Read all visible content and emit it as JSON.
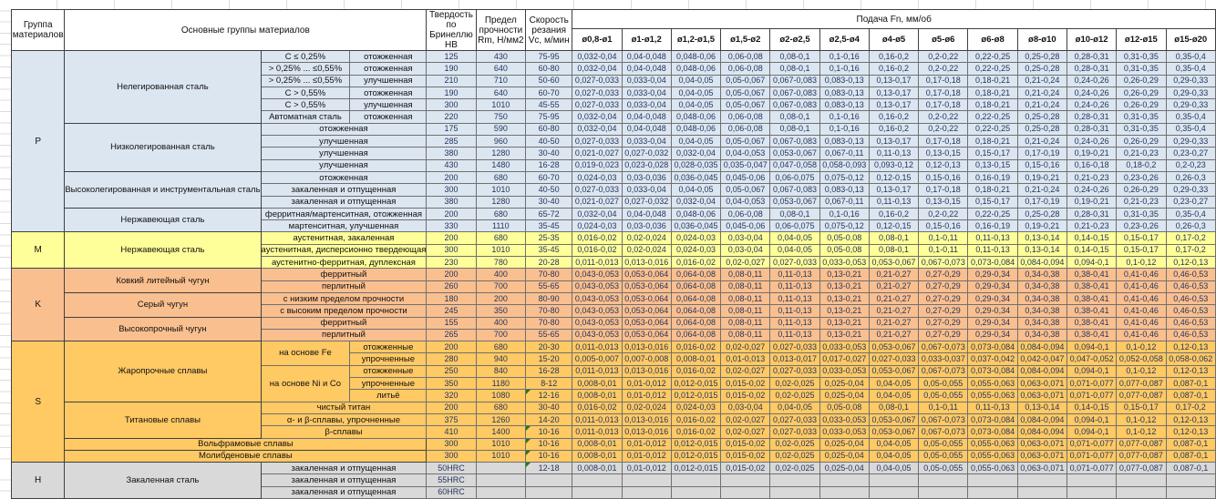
{
  "header": {
    "col_group": "Группа материалов",
    "col_main": "Основные группы материалов",
    "col_hb": "Твердость по Бринеллю HB",
    "col_rm": "Предел прочности Rm, Н/мм2",
    "col_vc": "Скорость резания Vc, м/мин",
    "feed_title": "Подача Fn, мм/об",
    "feed_cols": [
      "ø0,8-ø1",
      "ø1-ø1,2",
      "ø1,2-ø1,5",
      "ø1,5-ø2",
      "ø2-ø2,5",
      "ø2,5-ø4",
      "ø4-ø5",
      "ø5-ø6",
      "ø6-ø8",
      "ø8-ø10",
      "ø10-ø12",
      "ø12-ø15",
      "ø15-ø20"
    ]
  },
  "marker_color": "#1f7a1f",
  "feed_sets": {
    "F1": [
      "0,032-0,04",
      "0,04-0,048",
      "0,048-0,06",
      "0,06-0,08",
      "0,08-0,1",
      "0,1-0,16",
      "0,16-0,2",
      "0,2-0,22",
      "0,22-0,25",
      "0,25-0,28",
      "0,28-0,31",
      "0,31-0,35",
      "0,35-0,4"
    ],
    "F2": [
      "0,027-0,033",
      "0,033-0,04",
      "0,04-0,05",
      "0,05-0,067",
      "0,067-0,083",
      "0,083-0,13",
      "0,13-0,17",
      "0,17-0,18",
      "0,18-0,21",
      "0,21-0,24",
      "0,24-0,26",
      "0,26-0,29",
      "0,29-0,33"
    ],
    "F3": [
      "0,021-0,027",
      "0,027-0,032",
      "0,032-0,04",
      "0,04-0,053",
      "0,053-0,067",
      "0,067-0,11",
      "0,11-0,13",
      "0,13-0,15",
      "0,15-0,17",
      "0,17-0,19",
      "0,19-0,21",
      "0,21-0,23",
      "0,23-0,27"
    ],
    "F4": [
      "0,019-0,023",
      "0,023-0,028",
      "0,028-0,035",
      "0,035-0,047",
      "0,047-0,058",
      "0,058-0,093",
      "0,093-0,12",
      "0,12-0,13",
      "0,13-0,15",
      "0,15-0,16",
      "0,16-0,18",
      "0,18-0,2",
      "0,2-0,23"
    ],
    "F5": [
      "0,024-0,03",
      "0,03-0,036",
      "0,036-0,045",
      "0,045-0,06",
      "0,06-0,075",
      "0,075-0,12",
      "0,12-0,15",
      "0,15-0,16",
      "0,16-0,19",
      "0,19-0,21",
      "0,21-0,23",
      "0,23-0,26",
      "0,26-0,3"
    ],
    "F6": [
      "0,016-0,02",
      "0,02-0,024",
      "0,024-0,03",
      "0,03-0,04",
      "0,04-0,05",
      "0,05-0,08",
      "0,08-0,1",
      "0,1-0,11",
      "0,11-0,13",
      "0,13-0,14",
      "0,14-0,15",
      "0,15-0,17",
      "0,17-0,2"
    ],
    "F7": [
      "0,011-0,013",
      "0,013-0,016",
      "0,016-0,02",
      "0,02-0,027",
      "0,027-0,033",
      "0,033-0,053",
      "0,053-0,067",
      "0,067-0,073",
      "0,073-0,084",
      "0,084-0,094",
      "0,094-0,1",
      "0,1-0,12",
      "0,12-0,13"
    ],
    "F8": [
      "0,043-0,053",
      "0,053-0,064",
      "0,064-0,08",
      "0,08-0,11",
      "0,11-0,13",
      "0,13-0,21",
      "0,21-0,27",
      "0,27-0,29",
      "0,29-0,34",
      "0,34-0,38",
      "0,38-0,41",
      "0,41-0,46",
      "0,46-0,53"
    ],
    "F9": [
      "0,005-0,007",
      "0,007-0,008",
      "0,008-0,01",
      "0,01-0,013",
      "0,013-0,017",
      "0,017-0,027",
      "0,027-0,033",
      "0,033-0,037",
      "0,037-0,042",
      "0,042-0,047",
      "0,047-0,052",
      "0,052-0,058",
      "0,058-0,062"
    ],
    "F10": [
      "0,008-0,01",
      "0,01-0,012",
      "0,012-0,015",
      "0,015-0,02",
      "0,02-0,025",
      "0,025-0,04",
      "0,04-0,05",
      "0,05-0,055",
      "0,055-0,063",
      "0,063-0,071",
      "0,071-0,077",
      "0,077-0,087",
      "0,087-0,1"
    ]
  },
  "sections": [
    {
      "label": "P",
      "color": "#DCE6F1",
      "groups": [
        {
          "name": "Нелегированная сталь",
          "rows": [
            {
              "c1": "C ≤ 0,25%",
              "c2": "отожженная",
              "hb": "125",
              "rm": "430",
              "vc": "75-95",
              "fs": "F1"
            },
            {
              "c1": "> 0,25% ... ≤0,55%",
              "c2": "отожженная",
              "hb": "190",
              "rm": "640",
              "vc": "60-80",
              "fs": "F1"
            },
            {
              "c1": "> 0,25% ... ≤0,55%",
              "c2": "улучшенная",
              "hb": "210",
              "rm": "710",
              "vc": "50-60",
              "fs": "F2"
            },
            {
              "c1": "C > 0,55%",
              "c2": "отожженная",
              "hb": "190",
              "rm": "640",
              "vc": "60-70",
              "fs": "F2"
            },
            {
              "c1": "C > 0,55%",
              "c2": "улучшенная",
              "hb": "300",
              "rm": "1010",
              "vc": "45-55",
              "fs": "F2"
            },
            {
              "c1": "Автоматная сталь",
              "c2": "отожженная",
              "hb": "220",
              "rm": "750",
              "vc": "75-95",
              "fs": "F1"
            }
          ]
        },
        {
          "name": "Низколегированная сталь",
          "rows": [
            {
              "cond": "отожженная",
              "hb": "175",
              "rm": "590",
              "vc": "60-80",
              "fs": "F1"
            },
            {
              "cond": "улучшенная",
              "hb": "285",
              "rm": "960",
              "vc": "40-50",
              "fs": "F2"
            },
            {
              "cond": "улучшенная",
              "hb": "380",
              "rm": "1280",
              "vc": "30-40",
              "fs": "F3"
            },
            {
              "cond": "улучшенная",
              "hb": "430",
              "rm": "1480",
              "vc": "16-28",
              "fs": "F4"
            }
          ]
        },
        {
          "name": "Высоколегированная и инструментальная сталь",
          "rows": [
            {
              "cond": "отожженная",
              "hb": "200",
              "rm": "680",
              "vc": "60-70",
              "fs": "F5"
            },
            {
              "cond": "закаленная и отпущенная",
              "hb": "300",
              "rm": "1010",
              "vc": "40-50",
              "fs": "F2"
            },
            {
              "cond": "закаленная и отпущенная",
              "hb": "380",
              "rm": "1280",
              "vc": "30-40",
              "fs": "F3"
            }
          ]
        },
        {
          "name": "Нержавеющая сталь",
          "rows": [
            {
              "cond": "ферритная/мартенситная, отожженная",
              "hb": "200",
              "rm": "680",
              "vc": "65-72",
              "fs": "F1"
            },
            {
              "cond": "мартенситная, улучшенная",
              "hb": "330",
              "rm": "1110",
              "vc": "35-45",
              "fs": "F5"
            }
          ]
        }
      ]
    },
    {
      "label": "M",
      "color": "#FFFF99",
      "groups": [
        {
          "name": "Нержавеющая сталь",
          "rows": [
            {
              "cond": "аустенитная, закаленная",
              "hb": "200",
              "rm": "680",
              "vc": "25-35",
              "fs": "F6"
            },
            {
              "cond": "аустенитная, дисперсионно твердеющая",
              "hb": "300",
              "rm": "1010",
              "vc": "35-45",
              "fs": "F6"
            },
            {
              "cond": "аустенитно-ферритная, дуплексная",
              "hb": "230",
              "rm": "780",
              "vc": "20-28",
              "fs": "F7"
            }
          ]
        }
      ]
    },
    {
      "label": "K",
      "color": "#FABF8F",
      "groups": [
        {
          "name": "Ковкий литейный чугун",
          "rows": [
            {
              "cond": "ферритный",
              "hb": "200",
              "rm": "400",
              "vc": "70-80",
              "fs": "F8"
            },
            {
              "cond": "перлитный",
              "hb": "260",
              "rm": "700",
              "vc": "55-65",
              "fs": "F8"
            }
          ]
        },
        {
          "name": "Серый чугун",
          "rows": [
            {
              "cond": "с низким пределом прочности",
              "hb": "180",
              "rm": "200",
              "vc": "80-90",
              "fs": "F8"
            },
            {
              "cond": "с высоким пределом прочности",
              "hb": "245",
              "rm": "350",
              "vc": "70-80",
              "fs": "F8"
            }
          ]
        },
        {
          "name": "Высокопрочный чугун",
          "rows": [
            {
              "cond": "ферритный",
              "hb": "155",
              "rm": "400",
              "vc": "70-80",
              "fs": "F8"
            },
            {
              "cond": "перлитный",
              "hb": "265",
              "rm": "700",
              "vc": "55-65",
              "fs": "F8"
            }
          ]
        }
      ]
    },
    {
      "label": "S",
      "color": "#FFC964",
      "groups": [
        {
          "name": "Жаропрочные сплавы",
          "rows": [
            {
              "c1": "на основе Fe",
              "c1rs": 2,
              "c2": "отожженные",
              "hb": "200",
              "rm": "680",
              "vc": "20-30",
              "fs": "F7"
            },
            {
              "c2": "упрочненные",
              "hb": "280",
              "rm": "940",
              "vc": "15-20",
              "fs": "F9"
            },
            {
              "c1": "на основе Ni и Co",
              "c1rs": 3,
              "c2": "отожженные",
              "hb": "250",
              "rm": "840",
              "vc": "16-28",
              "fs": "F7"
            },
            {
              "c2": "упрочненные",
              "hb": "350",
              "rm": "1180",
              "vc": "8-12",
              "fs": "F10"
            },
            {
              "c2": "литьё",
              "hb": "320",
              "rm": "1080",
              "vc": "12-16",
              "fs": "F10",
              "mark": true
            }
          ]
        },
        {
          "name": "Титановые сплавы",
          "rows": [
            {
              "cond": "чистый титан",
              "hb": "200",
              "rm": "680",
              "vc": "30-40",
              "fs": "F6"
            },
            {
              "cond": "α- и β-сплавы, упрочненные",
              "hb": "375",
              "rm": "1260",
              "vc": "14-20",
              "fs": "F7"
            },
            {
              "cond": "β-сплавы",
              "hb": "410",
              "rm": "1400",
              "vc": "10-16",
              "fs": "F7",
              "mark": true
            }
          ]
        },
        {
          "name": "Вольфрамовые сплавы",
          "span3": true,
          "rows": [
            {
              "hb": "300",
              "rm": "1010",
              "vc": "10-16",
              "fs": "F10",
              "mark": true
            }
          ]
        },
        {
          "name": "Молибденовые сплавы",
          "span3": true,
          "rows": [
            {
              "hb": "300",
              "rm": "1010",
              "vc": "10-16",
              "fs": "F10",
              "mark": true
            }
          ]
        }
      ]
    },
    {
      "label": "H",
      "color": "#D9D9D9",
      "groups": [
        {
          "name": "Закаленная сталь",
          "rows": [
            {
              "cond": "закаленная и отпущенная",
              "hb": "50HRC",
              "rm": "",
              "vc": "12-18",
              "fs": "F10",
              "mark": true
            },
            {
              "cond": "закаленная и отпущенная",
              "hb": "55HRC",
              "rm": "",
              "vc": ""
            },
            {
              "cond": "закаленная и отпущенная",
              "hb": "60HRC",
              "rm": "",
              "vc": ""
            }
          ]
        }
      ]
    }
  ]
}
